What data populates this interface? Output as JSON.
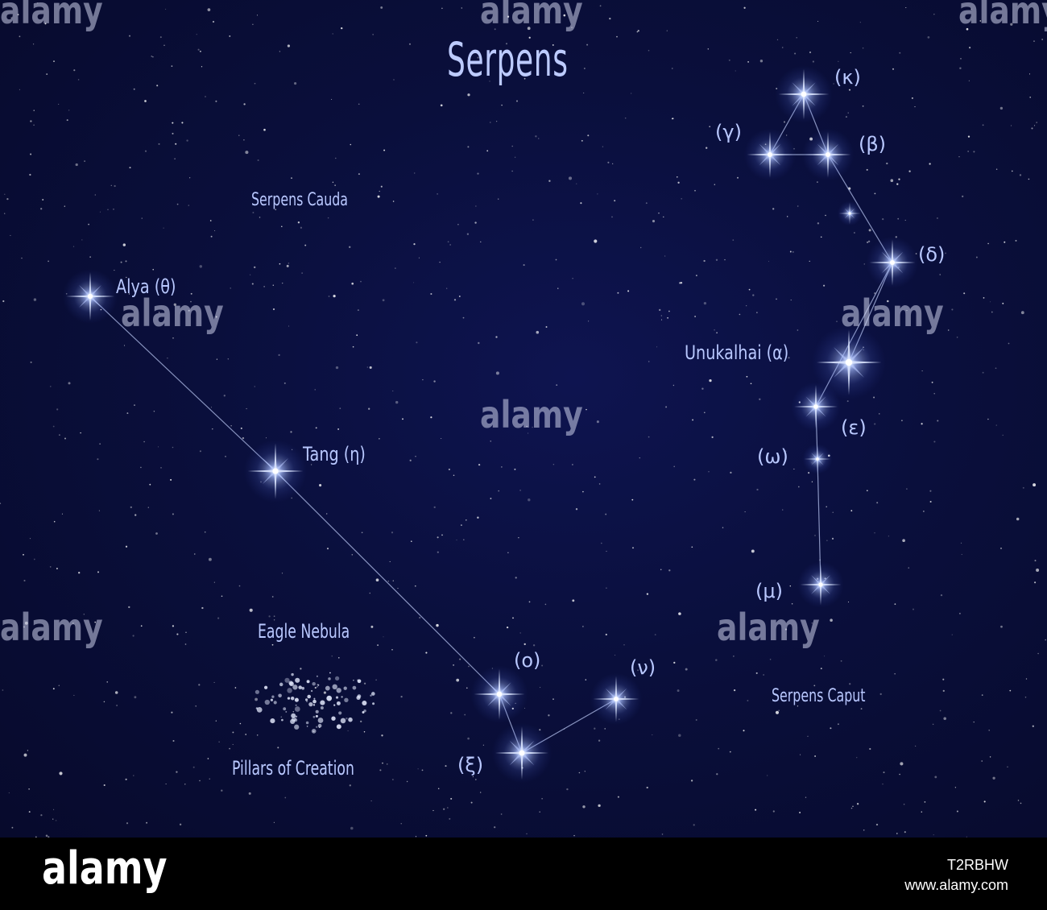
{
  "title": "Serpens",
  "regions": {
    "cauda": "Serpens Cauda",
    "caput": "Serpens Caput"
  },
  "stars": {
    "alya": "Alya (θ)",
    "tang": "Tang (η)",
    "unukalhai": "Unukalhai (α)",
    "kappa": "(κ)",
    "gamma": "(γ)",
    "beta": "(β)",
    "delta": "(δ)",
    "epsilon": "(ε)",
    "omega": "(ω)",
    "mu": "(μ)",
    "omicron": "(ο)",
    "nu": "(ν)",
    "xi": "(ξ)"
  },
  "nebula": {
    "eagle": "Eagle Nebula",
    "pillars": "Pillars of Creation"
  },
  "watermark": "alamy",
  "footer": {
    "logo": "alamy",
    "image_id": "T2RBHW",
    "site": "www.alamy.com"
  },
  "colors": {
    "sky": "#0a0f3c",
    "label": "#b9c8ff",
    "line": "#a8b4e0",
    "star": "#ffffff",
    "glow": "#7f9bff"
  }
}
